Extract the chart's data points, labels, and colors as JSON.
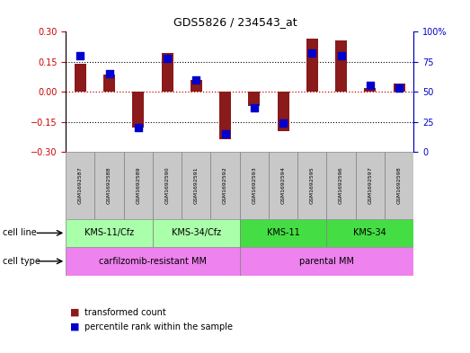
{
  "title": "GDS5826 / 234543_at",
  "samples": [
    "GSM1692587",
    "GSM1692588",
    "GSM1692589",
    "GSM1692590",
    "GSM1692591",
    "GSM1692592",
    "GSM1692593",
    "GSM1692594",
    "GSM1692595",
    "GSM1692596",
    "GSM1692597",
    "GSM1692598"
  ],
  "transformed_count": [
    0.14,
    0.085,
    -0.18,
    0.195,
    0.06,
    -0.235,
    -0.07,
    -0.195,
    0.265,
    0.255,
    0.02,
    0.04
  ],
  "percentile_rank": [
    80,
    65,
    20,
    78,
    60,
    15,
    37,
    24,
    82,
    80,
    55,
    53
  ],
  "ylim_left": [
    -0.3,
    0.3
  ],
  "ylim_right": [
    0,
    100
  ],
  "yticks_left": [
    -0.3,
    -0.15,
    0.0,
    0.15,
    0.3
  ],
  "yticks_right": [
    0,
    25,
    50,
    75,
    100
  ],
  "bar_color": "#8B1A1A",
  "dot_color": "#0000CC",
  "hline_color": "#CC0000",
  "cell_line_groups": [
    {
      "label": "KMS-11/Cfz",
      "start": 0,
      "end": 3,
      "color": "#AAFFAA"
    },
    {
      "label": "KMS-34/Cfz",
      "start": 3,
      "end": 6,
      "color": "#AAFFAA"
    },
    {
      "label": "KMS-11",
      "start": 6,
      "end": 9,
      "color": "#44DD44"
    },
    {
      "label": "KMS-34",
      "start": 9,
      "end": 12,
      "color": "#44DD44"
    }
  ],
  "cell_type_groups": [
    {
      "label": "carfilzomib-resistant MM",
      "start": 0,
      "end": 6,
      "color": "#EE82EE"
    },
    {
      "label": "parental MM",
      "start": 6,
      "end": 12,
      "color": "#EE82EE"
    }
  ],
  "legend_transformed": "transformed count",
  "legend_percentile": "percentile rank within the sample",
  "tick_label_bg": "#C8C8C8",
  "dotted_line_color": "#000000",
  "right_tick_labels": [
    "0",
    "25",
    "50",
    "75",
    "100%"
  ]
}
